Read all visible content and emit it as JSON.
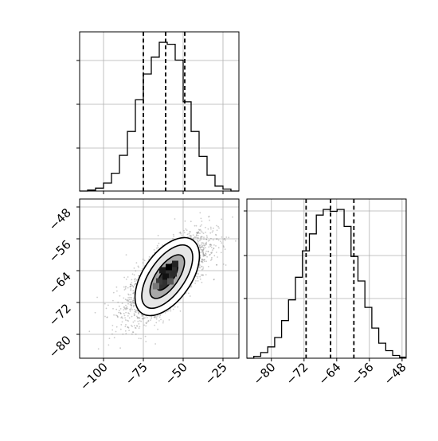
{
  "chart_data": [
    {
      "panel": "marginal-histogram-top",
      "type": "bar",
      "series": [
        {
          "values": [
            0,
            1,
            3,
            8,
            18,
            36,
            60,
            92,
            118,
            135,
            150,
            148,
            132,
            90,
            60,
            35,
            16,
            5,
            2,
            0
          ]
        }
      ],
      "bin_edges": [
        -115,
        -110,
        -105,
        -100,
        -95,
        -90,
        -85,
        -80,
        -75,
        -70,
        -65,
        -60,
        -55,
        -50,
        -45,
        -40,
        -35,
        -30,
        -25,
        -20,
        -15
      ],
      "xlim": [
        -115,
        -15
      ],
      "x_ticks": [
        -100,
        -75,
        -50,
        -25
      ],
      "quantile_lines": [
        -75,
        -61,
        -49
      ],
      "grid": true
    },
    {
      "panel": "marginal-histogram-right",
      "type": "bar",
      "series": [
        {
          "values": [
            0,
            2,
            6,
            12,
            22,
            40,
            62,
            86,
            114,
            132,
            152,
            158,
            156,
            158,
            140,
            108,
            82,
            54,
            32,
            16,
            8,
            3,
            1
          ]
        }
      ],
      "bin_edges": [
        -86,
        -84.3,
        -82.6,
        -80.9,
        -79.2,
        -77.5,
        -75.8,
        -74.1,
        -72.4,
        -70.7,
        -69,
        -67.3,
        -65.6,
        -63.9,
        -62.2,
        -60.5,
        -58.8,
        -57.1,
        -55.4,
        -53.7,
        -52,
        -50.3,
        -48.6,
        -46.9
      ],
      "xlim": [
        -86,
        -47
      ],
      "x_ticks": [
        -80,
        -72,
        -64,
        -56,
        -48
      ],
      "x_tick_labels": [
        "−80",
        "−72",
        "−64",
        "−56",
        "−48"
      ],
      "quantile_lines": [
        -71.5,
        -65.5,
        -59.8
      ],
      "grid": true
    },
    {
      "panel": "joint-density",
      "type": "heatmap",
      "xlim": [
        -115,
        -15
      ],
      "ylim": [
        -86,
        -46
      ],
      "x_ticks": [
        -100,
        -75,
        -50,
        -25
      ],
      "x_tick_labels": [
        "−100",
        "−75",
        "−50",
        "−25"
      ],
      "y_ticks": [
        -48,
        -56,
        -64,
        -72,
        -80
      ],
      "y_tick_labels": [
        "−48",
        "−56",
        "−64",
        "−72",
        "−80"
      ],
      "center": [
        -60,
        -65.5
      ],
      "grid": true,
      "levels": [
        "outer",
        "middle",
        "inner",
        "core"
      ]
    }
  ],
  "colors": {
    "ink": "#000000",
    "grid": "#b0b0b0",
    "points": "#6e6e6e",
    "fill_outer": "#ffffff",
    "fill_middle": "#e6e6e6",
    "fill_inner": "#a8a8a8",
    "fill_core": "#303030"
  }
}
